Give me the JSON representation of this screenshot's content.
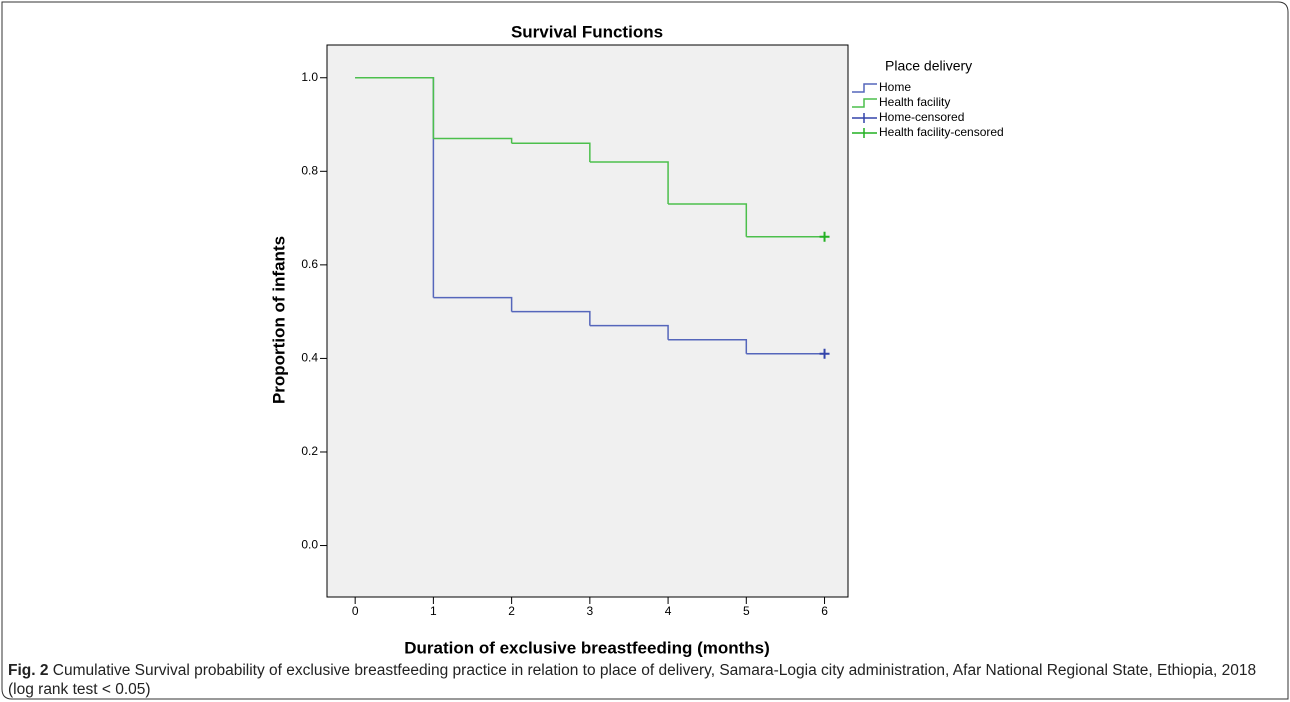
{
  "chart_data": {
    "type": "step",
    "title": "Survival Functions",
    "x_label": "Duration of exclusive breastfeeding (months)",
    "y_label": "Proportion of infants",
    "legend_title": "Place delivery",
    "x": [
      0,
      1,
      2,
      3,
      4,
      5,
      6
    ],
    "series": [
      {
        "name": "Home",
        "color": "#5566bb",
        "values": [
          1.0,
          0.53,
          0.5,
          0.47,
          0.44,
          0.41,
          0.41
        ]
      },
      {
        "name": "Health facility",
        "color": "#4cbf4c",
        "values": [
          1.0,
          0.87,
          0.86,
          0.82,
          0.73,
          0.66,
          0.66
        ]
      },
      {
        "name": "Home-censored",
        "color": "#3344aa",
        "marker": "+",
        "values": [
          null,
          null,
          null,
          null,
          null,
          null,
          0.41
        ]
      },
      {
        "name": "Health facility-censored",
        "color": "#22b022",
        "marker": "+",
        "values": [
          null,
          null,
          null,
          null,
          null,
          null,
          0.66
        ]
      }
    ],
    "xlim": [
      -0.36,
      6.3
    ],
    "ylim": [
      -0.11,
      1.07
    ],
    "xticks": [
      0,
      1,
      2,
      3,
      4,
      5,
      6
    ],
    "yticks": [
      {
        "value": 0,
        "label": "0.0"
      },
      0.2,
      0.4,
      0.6,
      0.8,
      {
        "value": 1,
        "label": "1.0"
      }
    ],
    "background": "#f0f0f0"
  },
  "caption": {
    "label": "Fig. 2",
    "text": "Cumulative Survival probability of exclusive breastfeeding practice in relation to place of delivery, Samara-Logia city administration, Afar National Regional State, Ethiopia, 2018 (log rank test < 0.05)"
  }
}
